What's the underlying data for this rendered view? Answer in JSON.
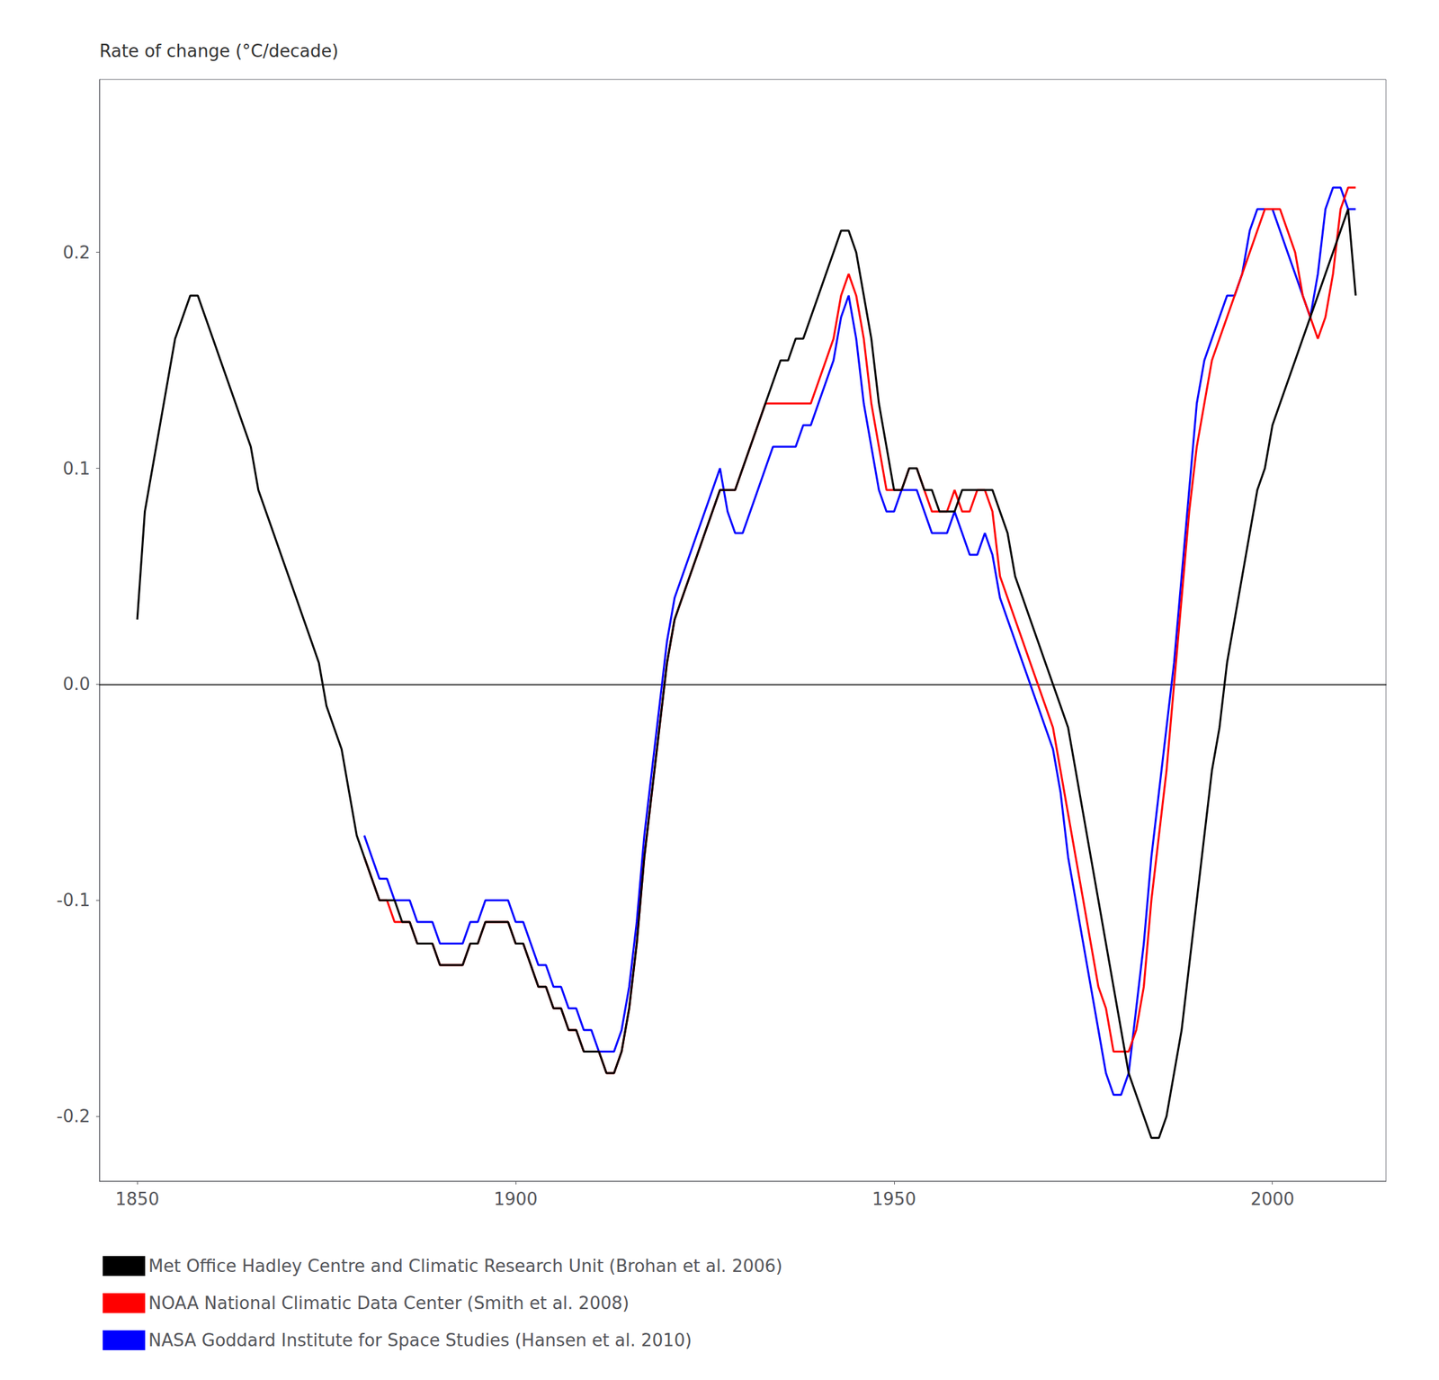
{
  "chart_data": {
    "type": "line",
    "ylabel": "Rate of change (°C/decade)",
    "xlim": [
      1845,
      2015
    ],
    "ylim": [
      -0.23,
      0.28
    ],
    "xticks": [
      1850,
      1900,
      1950,
      2000
    ],
    "yticks": [
      -0.2,
      -0.1,
      {
        "value": 0,
        "label": "0.0"
      },
      0.1,
      0.2
    ],
    "grid": false,
    "legend": "lower left",
    "series": [
      {
        "name": "Met Office Hadley Centre and Climatic Research Unit (Brohan et al. 2006)",
        "color": "#000000",
        "x": [
          1850,
          1851,
          1852,
          1853,
          1854,
          1855,
          1856,
          1857,
          1858,
          1859,
          1860,
          1861,
          1862,
          1863,
          1864,
          1865,
          1866,
          1867,
          1868,
          1869,
          1870,
          1871,
          1872,
          1873,
          1874,
          1875,
          1876,
          1877,
          1878,
          1879,
          1880,
          1881,
          1882,
          1883,
          1884,
          1885,
          1886,
          1887,
          1888,
          1889,
          1890,
          1891,
          1892,
          1893,
          1894,
          1895,
          1896,
          1897,
          1898,
          1899,
          1900,
          1901,
          1902,
          1903,
          1904,
          1905,
          1906,
          1907,
          1908,
          1909,
          1910,
          1911,
          1912,
          1913,
          1914,
          1915,
          1916,
          1917,
          1918,
          1919,
          1920,
          1921,
          1922,
          1923,
          1924,
          1925,
          1926,
          1927,
          1928,
          1929,
          1930,
          1931,
          1932,
          1933,
          1934,
          1935,
          1936,
          1937,
          1938,
          1939,
          1940,
          1941,
          1942,
          1943,
          1944,
          1945,
          1946,
          1947,
          1948,
          1949,
          1950,
          1951,
          1952,
          1953,
          1954,
          1955,
          1956,
          1957,
          1958,
          1959,
          1960,
          1961,
          1962,
          1963,
          1964,
          1965,
          1966,
          1967,
          1968,
          1969,
          1970,
          1971,
          1972,
          1973,
          1974,
          1975,
          1976,
          1977,
          1978,
          1979,
          1980,
          1981,
          1982,
          1983,
          1984,
          1985,
          1986,
          1987,
          1988,
          1989,
          1990,
          1991,
          1992,
          1993,
          1994,
          1995,
          1996,
          1997,
          1998,
          1999,
          2000,
          2001,
          2002,
          2003,
          2004,
          2005,
          2006,
          2007,
          2008,
          2009,
          2010,
          2011
        ],
        "values": [
          0.03,
          0.08,
          0.1,
          0.12,
          0.14,
          0.16,
          0.17,
          0.18,
          0.18,
          0.17,
          0.16,
          0.15,
          0.14,
          0.13,
          0.12,
          0.11,
          0.09,
          0.08,
          0.07,
          0.06,
          0.05,
          0.04,
          0.03,
          0.02,
          0.01,
          -0.01,
          -0.02,
          -0.03,
          -0.05,
          -0.07,
          -0.08,
          -0.09,
          -0.1,
          -0.1,
          -0.1,
          -0.11,
          -0.11,
          -0.12,
          -0.12,
          -0.12,
          -0.13,
          -0.13,
          -0.13,
          -0.13,
          -0.12,
          -0.12,
          -0.11,
          -0.11,
          -0.11,
          -0.11,
          -0.12,
          -0.12,
          -0.13,
          -0.14,
          -0.14,
          -0.15,
          -0.15,
          -0.16,
          -0.16,
          -0.17,
          -0.17,
          -0.17,
          -0.18,
          -0.18,
          -0.17,
          -0.15,
          -0.12,
          -0.08,
          -0.05,
          -0.02,
          0.01,
          0.03,
          0.04,
          0.05,
          0.06,
          0.07,
          0.08,
          0.09,
          0.09,
          0.09,
          0.1,
          0.11,
          0.12,
          0.13,
          0.14,
          0.15,
          0.15,
          0.16,
          0.16,
          0.17,
          0.18,
          0.19,
          0.2,
          0.21,
          0.21,
          0.2,
          0.18,
          0.16,
          0.13,
          0.11,
          0.09,
          0.09,
          0.1,
          0.1,
          0.09,
          0.09,
          0.08,
          0.08,
          0.08,
          0.09,
          0.09,
          0.09,
          0.09,
          0.09,
          0.08,
          0.07,
          0.05,
          0.04,
          0.03,
          0.02,
          0.01,
          0.0,
          -0.01,
          -0.02,
          -0.04,
          -0.06,
          -0.08,
          -0.1,
          -0.12,
          -0.14,
          -0.16,
          -0.18,
          -0.19,
          -0.2,
          -0.21,
          -0.21,
          -0.2,
          -0.18,
          -0.16,
          -0.13,
          -0.1,
          -0.07,
          -0.04,
          -0.02,
          0.01,
          0.03,
          0.05,
          0.07,
          0.09,
          0.1,
          0.12,
          0.13,
          0.14,
          0.15,
          0.16,
          0.17,
          0.18,
          0.19,
          0.2,
          0.21,
          0.22,
          0.18
        ]
      },
      {
        "name": "NOAA National Climatic Data Center (Smith et al. 2008)",
        "color": "#ff0000",
        "x": [
          1880,
          1881,
          1882,
          1883,
          1884,
          1885,
          1886,
          1887,
          1888,
          1889,
          1890,
          1891,
          1892,
          1893,
          1894,
          1895,
          1896,
          1897,
          1898,
          1899,
          1900,
          1901,
          1902,
          1903,
          1904,
          1905,
          1906,
          1907,
          1908,
          1909,
          1910,
          1911,
          1912,
          1913,
          1914,
          1915,
          1916,
          1917,
          1918,
          1919,
          1920,
          1921,
          1922,
          1923,
          1924,
          1925,
          1926,
          1927,
          1928,
          1929,
          1930,
          1931,
          1932,
          1933,
          1934,
          1935,
          1936,
          1937,
          1938,
          1939,
          1940,
          1941,
          1942,
          1943,
          1944,
          1945,
          1946,
          1947,
          1948,
          1949,
          1950,
          1951,
          1952,
          1953,
          1954,
          1955,
          1956,
          1957,
          1958,
          1959,
          1960,
          1961,
          1962,
          1963,
          1964,
          1965,
          1966,
          1967,
          1968,
          1969,
          1970,
          1971,
          1972,
          1973,
          1974,
          1975,
          1976,
          1977,
          1978,
          1979,
          1980,
          1981,
          1982,
          1983,
          1984,
          1985,
          1986,
          1987,
          1988,
          1989,
          1990,
          1991,
          1992,
          1993,
          1994,
          1995,
          1996,
          1997,
          1998,
          1999,
          2000,
          2001,
          2002,
          2003,
          2004,
          2005,
          2006,
          2007,
          2008,
          2009,
          2010,
          2011
        ],
        "values": [
          -0.08,
          -0.09,
          -0.1,
          -0.1,
          -0.11,
          -0.11,
          -0.11,
          -0.12,
          -0.12,
          -0.12,
          -0.13,
          -0.13,
          -0.13,
          -0.13,
          -0.12,
          -0.12,
          -0.11,
          -0.11,
          -0.11,
          -0.11,
          -0.12,
          -0.12,
          -0.13,
          -0.14,
          -0.14,
          -0.15,
          -0.15,
          -0.16,
          -0.16,
          -0.17,
          -0.17,
          -0.17,
          -0.18,
          -0.18,
          -0.17,
          -0.15,
          -0.12,
          -0.08,
          -0.05,
          -0.02,
          0.01,
          0.03,
          0.04,
          0.05,
          0.06,
          0.07,
          0.08,
          0.09,
          0.09,
          0.09,
          0.1,
          0.11,
          0.12,
          0.13,
          0.13,
          0.13,
          0.13,
          0.13,
          0.13,
          0.13,
          0.14,
          0.15,
          0.16,
          0.18,
          0.19,
          0.18,
          0.16,
          0.13,
          0.11,
          0.09,
          0.09,
          0.09,
          0.1,
          0.1,
          0.09,
          0.08,
          0.08,
          0.08,
          0.09,
          0.08,
          0.08,
          0.09,
          0.09,
          0.08,
          0.05,
          0.04,
          0.03,
          0.02,
          0.01,
          0.0,
          -0.01,
          -0.02,
          -0.04,
          -0.06,
          -0.08,
          -0.1,
          -0.12,
          -0.14,
          -0.15,
          -0.17,
          -0.17,
          -0.17,
          -0.16,
          -0.14,
          -0.1,
          -0.07,
          -0.04,
          0.0,
          0.04,
          0.08,
          0.11,
          0.13,
          0.15,
          0.16,
          0.17,
          0.18,
          0.19,
          0.2,
          0.21,
          0.22,
          0.22,
          0.22,
          0.21,
          0.2,
          0.18,
          0.17,
          0.16,
          0.17,
          0.19,
          0.22,
          0.23,
          0.23
        ]
      },
      {
        "name": "NASA Goddard Institute for Space Studies (Hansen et al. 2010)",
        "color": "#0000ff",
        "x": [
          1880,
          1881,
          1882,
          1883,
          1884,
          1885,
          1886,
          1887,
          1888,
          1889,
          1890,
          1891,
          1892,
          1893,
          1894,
          1895,
          1896,
          1897,
          1898,
          1899,
          1900,
          1901,
          1902,
          1903,
          1904,
          1905,
          1906,
          1907,
          1908,
          1909,
          1910,
          1911,
          1912,
          1913,
          1914,
          1915,
          1916,
          1917,
          1918,
          1919,
          1920,
          1921,
          1922,
          1923,
          1924,
          1925,
          1926,
          1927,
          1928,
          1929,
          1930,
          1931,
          1932,
          1933,
          1934,
          1935,
          1936,
          1937,
          1938,
          1939,
          1940,
          1941,
          1942,
          1943,
          1944,
          1945,
          1946,
          1947,
          1948,
          1949,
          1950,
          1951,
          1952,
          1953,
          1954,
          1955,
          1956,
          1957,
          1958,
          1959,
          1960,
          1961,
          1962,
          1963,
          1964,
          1965,
          1966,
          1967,
          1968,
          1969,
          1970,
          1971,
          1972,
          1973,
          1974,
          1975,
          1976,
          1977,
          1978,
          1979,
          1980,
          1981,
          1982,
          1983,
          1984,
          1985,
          1986,
          1987,
          1988,
          1989,
          1990,
          1991,
          1992,
          1993,
          1994,
          1995,
          1996,
          1997,
          1998,
          1999,
          2000,
          2001,
          2002,
          2003,
          2004,
          2005,
          2006,
          2007,
          2008,
          2009,
          2010,
          2011
        ],
        "values": [
          -0.07,
          -0.08,
          -0.09,
          -0.09,
          -0.1,
          -0.1,
          -0.1,
          -0.11,
          -0.11,
          -0.11,
          -0.12,
          -0.12,
          -0.12,
          -0.12,
          -0.11,
          -0.11,
          -0.1,
          -0.1,
          -0.1,
          -0.1,
          -0.11,
          -0.11,
          -0.12,
          -0.13,
          -0.13,
          -0.14,
          -0.14,
          -0.15,
          -0.15,
          -0.16,
          -0.16,
          -0.17,
          -0.17,
          -0.17,
          -0.16,
          -0.14,
          -0.11,
          -0.07,
          -0.04,
          -0.01,
          0.02,
          0.04,
          0.05,
          0.06,
          0.07,
          0.08,
          0.09,
          0.1,
          0.08,
          0.07,
          0.07,
          0.08,
          0.09,
          0.1,
          0.11,
          0.11,
          0.11,
          0.11,
          0.12,
          0.12,
          0.13,
          0.14,
          0.15,
          0.17,
          0.18,
          0.16,
          0.13,
          0.11,
          0.09,
          0.08,
          0.08,
          0.09,
          0.09,
          0.09,
          0.08,
          0.07,
          0.07,
          0.07,
          0.08,
          0.07,
          0.06,
          0.06,
          0.07,
          0.06,
          0.04,
          0.03,
          0.02,
          0.01,
          0.0,
          -0.01,
          -0.02,
          -0.03,
          -0.05,
          -0.08,
          -0.1,
          -0.12,
          -0.14,
          -0.16,
          -0.18,
          -0.19,
          -0.19,
          -0.18,
          -0.15,
          -0.12,
          -0.08,
          -0.05,
          -0.02,
          0.01,
          0.05,
          0.09,
          0.13,
          0.15,
          0.16,
          0.17,
          0.18,
          0.18,
          0.19,
          0.21,
          0.22,
          0.22,
          0.22,
          0.21,
          0.2,
          0.19,
          0.18,
          0.17,
          0.19,
          0.22,
          0.23,
          0.23,
          0.22,
          0.22
        ]
      }
    ]
  }
}
